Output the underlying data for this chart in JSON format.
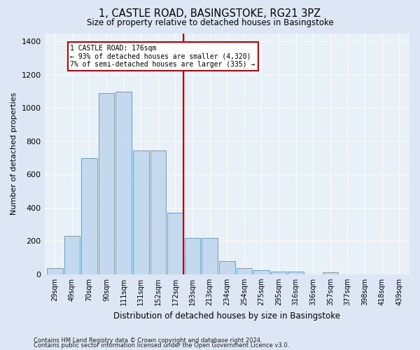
{
  "title": "1, CASTLE ROAD, BASINGSTOKE, RG21 3PZ",
  "subtitle": "Size of property relative to detached houses in Basingstoke",
  "xlabel": "Distribution of detached houses by size in Basingstoke",
  "ylabel": "Number of detached properties",
  "categories": [
    "29sqm",
    "49sqm",
    "70sqm",
    "90sqm",
    "111sqm",
    "131sqm",
    "152sqm",
    "172sqm",
    "193sqm",
    "213sqm",
    "234sqm",
    "254sqm",
    "275sqm",
    "295sqm",
    "316sqm",
    "336sqm",
    "357sqm",
    "377sqm",
    "398sqm",
    "418sqm",
    "439sqm"
  ],
  "values": [
    35,
    230,
    700,
    1090,
    1100,
    745,
    745,
    370,
    218,
    218,
    80,
    35,
    25,
    18,
    15,
    0,
    12,
    0,
    0,
    0,
    0
  ],
  "bar_color": "#c5d9ee",
  "bar_edge_color": "#6a9ec5",
  "vline_color": "#cc0000",
  "annotation_title": "1 CASTLE ROAD: 176sqm",
  "annotation_line1": "← 93% of detached houses are smaller (4,320)",
  "annotation_line2": "7% of semi-detached houses are larger (335) →",
  "annotation_box_color": "#cc0000",
  "ylim": [
    0,
    1450
  ],
  "yticks": [
    0,
    200,
    400,
    600,
    800,
    1000,
    1200,
    1400
  ],
  "footnote1": "Contains HM Land Registry data © Crown copyright and database right 2024.",
  "footnote2": "Contains public sector information licensed under the Open Government Licence v3.0.",
  "bg_color": "#dce6f5",
  "plot_bg_color": "#e8f0f8",
  "grid_color": "#ffffff"
}
